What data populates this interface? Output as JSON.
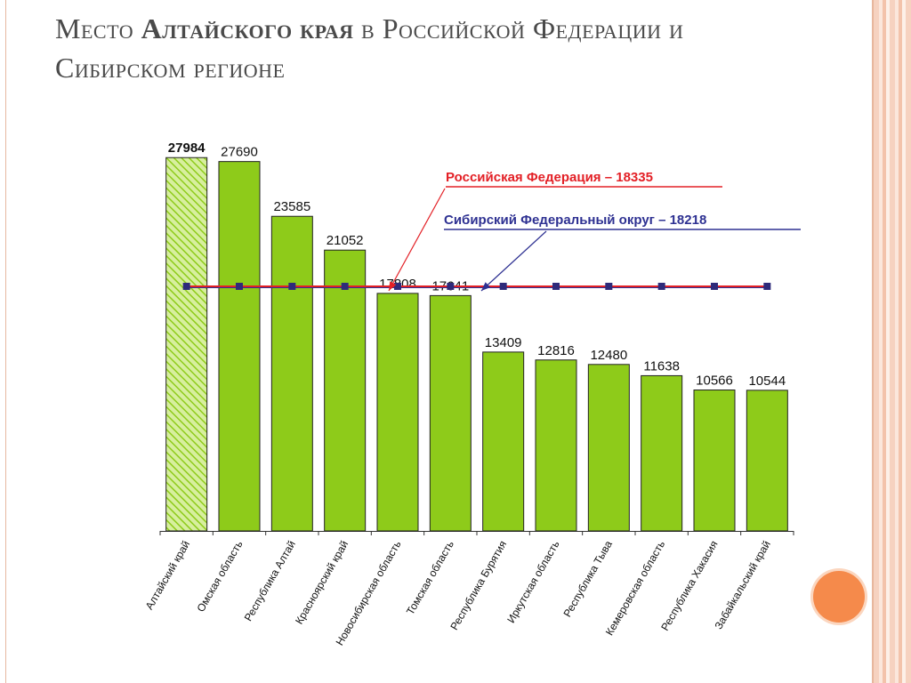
{
  "title": {
    "part1": "Место ",
    "part2": "Алтайского края",
    "part3": " в Российской Федерации и Сибирском регионе"
  },
  "colors": {
    "bar": "#8ecb1a",
    "bar_highlight": "#d7ef9e",
    "rf_line": "#e32026",
    "sfo_line": "#2e3192",
    "marker": "#2e2a7a",
    "deco_circle": "#f58a4b"
  },
  "chart_data": {
    "type": "bar",
    "categories": [
      "Алтайский край",
      "Омская область",
      "Республика Алтай",
      "Красноярский край",
      "Новосибирская область",
      "Томская область",
      "Республика Бурятия",
      "Иркутская область",
      "Республика Тыва",
      "Кемеровская область",
      "Республика Хакасия",
      "Забайкальский край"
    ],
    "values": [
      27984,
      27690,
      23585,
      21052,
      17808,
      17641,
      13409,
      12816,
      12480,
      11638,
      10566,
      10544
    ],
    "value_labels": [
      "27984",
      "27690",
      "23585",
      "21052",
      "17808",
      "17641",
      "13409",
      "12816",
      "12480",
      "11638",
      "10566",
      "10544"
    ],
    "highlight_index": 0,
    "reference_lines": [
      {
        "label": "Российская Федерация – 18335",
        "value": 18335,
        "color": "#e32026"
      },
      {
        "label": "Сибирский Федеральный округ – 18218",
        "value": 18218,
        "color": "#2e3192"
      }
    ],
    "ylim": [
      0,
      30000
    ],
    "legend": "top-right",
    "grid": false
  }
}
